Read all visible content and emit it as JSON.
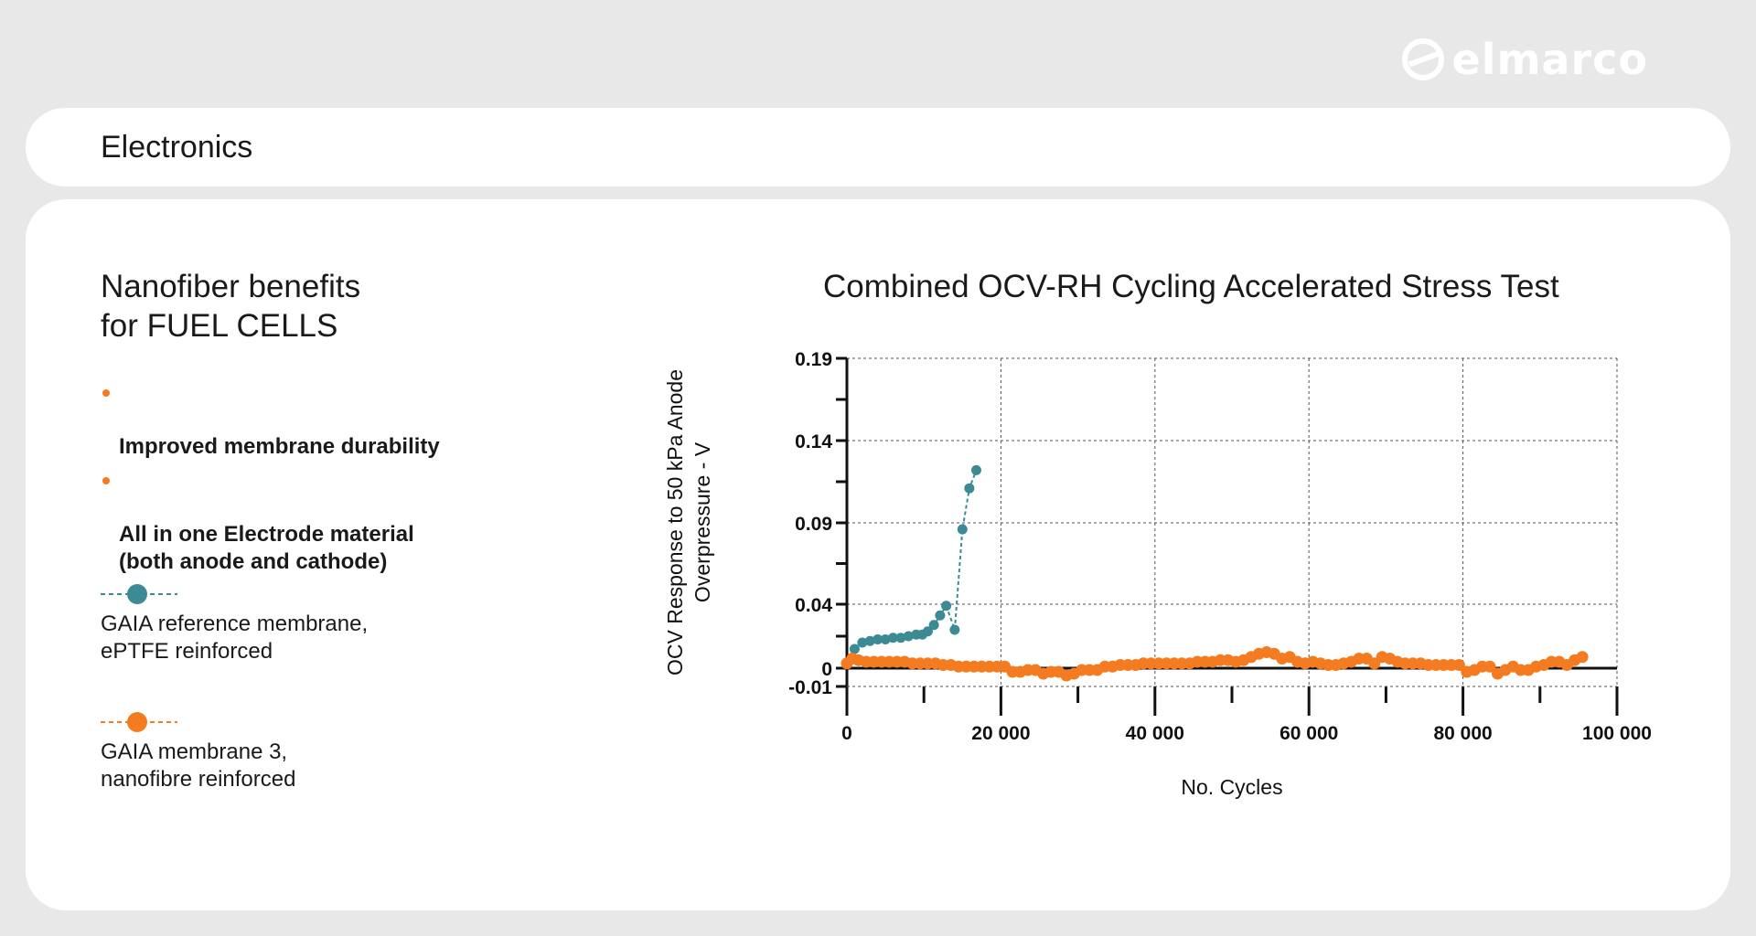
{
  "brand": {
    "name": "elmarco",
    "logo_color": "#ffffff"
  },
  "section": {
    "title": "Electronics"
  },
  "heading": "Nanofiber benefits\nfor FUEL CELLS",
  "benefits": [
    {
      "text": "Improved membrane durability"
    },
    {
      "text": "All in one Electrode material\n(both anode and cathode)"
    }
  ],
  "colors": {
    "accent": "#f47b20",
    "teal": "#3b8a94",
    "bg": "#e8e8e8",
    "card": "#ffffff"
  },
  "chart_data": {
    "type": "scatter",
    "title": "Combined OCV-RH Cycling Accelerated Stress Test",
    "xlabel": "No. Cycles",
    "ylabel_lines": [
      "OCV Response to 50 kPa Anode",
      "Overpressure - V"
    ],
    "xlim": [
      0,
      100000
    ],
    "ylim": [
      -0.01,
      0.19
    ],
    "x_ticks": [
      0,
      20000,
      40000,
      60000,
      80000,
      100000
    ],
    "x_tick_labels": [
      "0",
      "20 000",
      "40 000",
      "60 000",
      "80 000",
      "100 000"
    ],
    "y_ticks": [
      -0.01,
      0,
      0.04,
      0.09,
      0.14,
      0.19
    ],
    "y_tick_labels": [
      "-0.01",
      "0",
      "0.04",
      "0.09",
      "0.14",
      "0.19"
    ],
    "grid": true,
    "legend_position": "left",
    "series": [
      {
        "name": "GAIA reference membrane,\nePTFE reinforced",
        "color": "#3b8a94",
        "points": [
          [
            1000,
            0.012
          ],
          [
            2000,
            0.016
          ],
          [
            3000,
            0.017
          ],
          [
            4000,
            0.018
          ],
          [
            5000,
            0.018
          ],
          [
            6000,
            0.019
          ],
          [
            7000,
            0.019
          ],
          [
            8000,
            0.02
          ],
          [
            9000,
            0.021
          ],
          [
            9800,
            0.021
          ],
          [
            10500,
            0.023
          ],
          [
            11300,
            0.027
          ],
          [
            12100,
            0.033
          ],
          [
            12900,
            0.039
          ],
          [
            14000,
            0.024
          ],
          [
            15000,
            0.086
          ],
          [
            15900,
            0.111
          ],
          [
            16800,
            0.122
          ]
        ]
      },
      {
        "name": "GAIA membrane 3,\nnanofibre reinforced",
        "color": "#f47b20",
        "points": [
          [
            0,
            0.003
          ],
          [
            700,
            0.006
          ],
          [
            1500,
            0.005
          ],
          [
            2500,
            0.004
          ],
          [
            3500,
            0.004
          ],
          [
            4500,
            0.004
          ],
          [
            5500,
            0.004
          ],
          [
            6500,
            0.004
          ],
          [
            7500,
            0.004
          ],
          [
            8500,
            0.003
          ],
          [
            9500,
            0.003
          ],
          [
            10500,
            0.003
          ],
          [
            11500,
            0.003
          ],
          [
            12500,
            0.002
          ],
          [
            13500,
            0.002
          ],
          [
            14500,
            0.001
          ],
          [
            15500,
            0.001
          ],
          [
            16500,
            0.001
          ],
          [
            17500,
            0.001
          ],
          [
            18500,
            0.001
          ],
          [
            19500,
            0.001
          ],
          [
            20500,
            0.001
          ],
          [
            21500,
            -0.002
          ],
          [
            22500,
            -0.002
          ],
          [
            23500,
            -0.001
          ],
          [
            24500,
            -0.001
          ],
          [
            25500,
            -0.003
          ],
          [
            26500,
            -0.002
          ],
          [
            27500,
            -0.002
          ],
          [
            28500,
            -0.004
          ],
          [
            29500,
            -0.003
          ],
          [
            30500,
            -0.001
          ],
          [
            31500,
            -0.001
          ],
          [
            32500,
            -0.001
          ],
          [
            33500,
            0.001
          ],
          [
            34500,
            0.001
          ],
          [
            35500,
            0.002
          ],
          [
            36500,
            0.002
          ],
          [
            37500,
            0.002
          ],
          [
            38500,
            0.003
          ],
          [
            39500,
            0.003
          ],
          [
            40500,
            0.003
          ],
          [
            41500,
            0.003
          ],
          [
            42500,
            0.003
          ],
          [
            43500,
            0.003
          ],
          [
            44500,
            0.003
          ],
          [
            45500,
            0.004
          ],
          [
            46500,
            0.004
          ],
          [
            47500,
            0.004
          ],
          [
            48500,
            0.005
          ],
          [
            49500,
            0.005
          ],
          [
            50500,
            0.004
          ],
          [
            51500,
            0.005
          ],
          [
            52500,
            0.007
          ],
          [
            53500,
            0.009
          ],
          [
            54500,
            0.01
          ],
          [
            55500,
            0.009
          ],
          [
            56500,
            0.006
          ],
          [
            57500,
            0.007
          ],
          [
            58500,
            0.004
          ],
          [
            59500,
            0.003
          ],
          [
            60500,
            0.004
          ],
          [
            61500,
            0.003
          ],
          [
            62500,
            0.002
          ],
          [
            63500,
            0.002
          ],
          [
            64500,
            0.003
          ],
          [
            65500,
            0.004
          ],
          [
            66500,
            0.006
          ],
          [
            67500,
            0.006
          ],
          [
            68500,
            0.003
          ],
          [
            69500,
            0.007
          ],
          [
            70500,
            0.006
          ],
          [
            71500,
            0.004
          ],
          [
            72500,
            0.003
          ],
          [
            73500,
            0.003
          ],
          [
            74500,
            0.003
          ],
          [
            75500,
            0.002
          ],
          [
            76500,
            0.002
          ],
          [
            77500,
            0.002
          ],
          [
            78500,
            0.002
          ],
          [
            79500,
            0.002
          ],
          [
            80500,
            -0.002
          ],
          [
            81500,
            -0.001
          ],
          [
            82500,
            0.001
          ],
          [
            83500,
            0.001
          ],
          [
            84500,
            -0.003
          ],
          [
            85500,
            -0.001
          ],
          [
            86500,
            0.001
          ],
          [
            87500,
            -0.001
          ],
          [
            88500,
            -0.001
          ],
          [
            89500,
            0.001
          ],
          [
            90500,
            0.002
          ],
          [
            91500,
            0.004
          ],
          [
            92500,
            0.004
          ],
          [
            93500,
            0.002
          ],
          [
            94500,
            0.005
          ],
          [
            95500,
            0.007
          ]
        ]
      }
    ]
  }
}
